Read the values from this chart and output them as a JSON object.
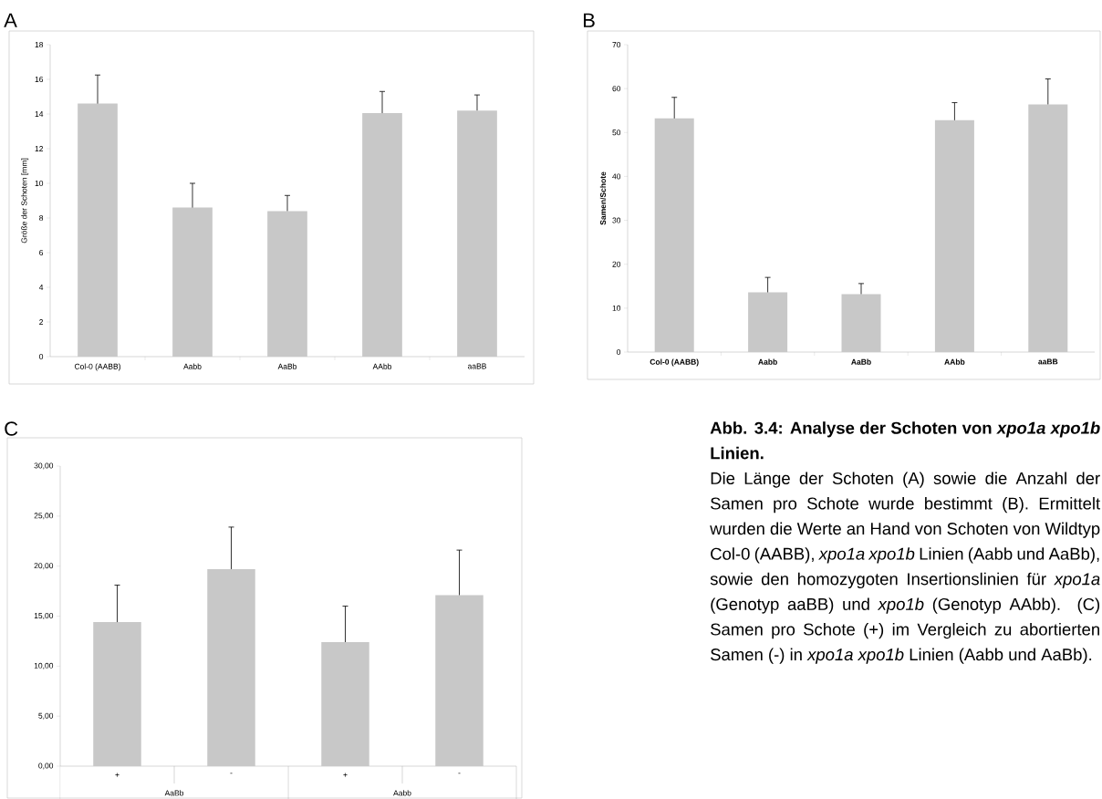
{
  "chart_data": [
    {
      "type": "bar",
      "title": "A",
      "ylabel": "Größe der Schoten [mm]",
      "categories": [
        "Col-0 (AABB)",
        "Aabb",
        "AaBb",
        "AAbb",
        "aaBB"
      ],
      "values": [
        14.6,
        8.6,
        8.4,
        14.05,
        14.2
      ],
      "errors": [
        [
          14.6,
          16.25
        ],
        [
          8.6,
          10.0
        ],
        [
          8.4,
          9.3
        ],
        [
          14.05,
          15.3
        ],
        [
          14.2,
          15.1
        ]
      ],
      "color": "#c8c8c8",
      "ylim": [
        0,
        18
      ],
      "yticks": [
        0,
        2,
        4,
        6,
        8,
        10,
        12,
        14,
        16,
        18
      ]
    },
    {
      "type": "bar",
      "title": "B",
      "ylabel": "Samen/Schote",
      "categories": [
        "Col-0 (AABB)",
        "Aabb",
        "AaBb",
        "AAbb",
        "aaBB"
      ],
      "values": [
        53.2,
        13.6,
        13.2,
        52.8,
        56.4
      ],
      "errors": [
        [
          53.2,
          58.0
        ],
        [
          13.6,
          17.0
        ],
        [
          13.2,
          15.6
        ],
        [
          52.8,
          56.8
        ],
        [
          56.4,
          62.2
        ]
      ],
      "color": "#c8c8c8",
      "ylim": [
        0,
        70
      ],
      "yticks": [
        0,
        10,
        20,
        30,
        40,
        50,
        60,
        70
      ]
    },
    {
      "type": "bar",
      "title": "C",
      "categories": [
        "+",
        "-",
        "+",
        "-"
      ],
      "values": [
        14.4,
        19.7,
        12.4,
        17.1
      ],
      "errors": [
        [
          14.4,
          18.1
        ],
        [
          19.7,
          23.9
        ],
        [
          12.4,
          16.0
        ],
        [
          17.1,
          21.6
        ]
      ],
      "color": "#c8c8c8",
      "ylim": [
        0,
        30
      ],
      "yticks": [
        {
          "value": 0,
          "label": "0,00"
        },
        {
          "value": 5,
          "label": "5,00"
        },
        {
          "value": 10,
          "label": "10,00"
        },
        {
          "value": 15,
          "label": "15,00"
        },
        {
          "value": 20,
          "label": "20,00"
        },
        {
          "value": 25,
          "label": "25,00"
        },
        {
          "value": 30,
          "label": "30,00"
        }
      ],
      "annotations": [
        "AaBb",
        "Aabb"
      ]
    },
    {
      "type": "other",
      "title": "Abb. 3.4: Analyse der Schoten von *xpo1a xpo1b* Linien.",
      "annotations": [
        "Die Länge der Schoten (A) sowie die Anzahl der Samen pro Schote wurde bestimmt (B). Ermittelt wurden die Werte an Hand von Schoten von Wildtyp Col-0 (AABB), *xpo1a xpo1b* Linien (Aabb und AaBb), sowie den homozygoten Insertionslinien für *xpo1a* (Genotyp aaBB) und *xpo1b* (Genotyp AAbb). (C) Samen pro Schote (+) im Vergleich zu abortierten Samen (-) in *xpo1a xpo1b* Linien (Aabb und AaBb)."
      ]
    }
  ]
}
